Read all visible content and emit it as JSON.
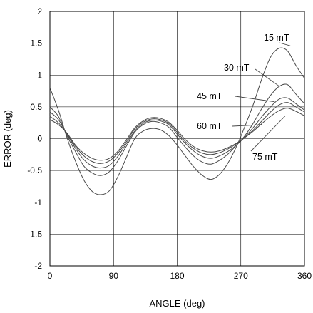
{
  "chart_data": {
    "type": "line",
    "title": "",
    "xlabel": "ANGLE (deg)",
    "ylabel": "ERROR (deg)",
    "xlim": [
      0,
      360
    ],
    "ylim": [
      -2,
      2
    ],
    "grid": true,
    "xticks": [
      0,
      90,
      180,
      270,
      360
    ],
    "xtick_labels": [
      "0",
      "90",
      "180",
      "270",
      "360"
    ],
    "yticks": [
      -2,
      -1.5,
      -1,
      -0.5,
      0,
      0.5,
      1,
      1.5,
      2
    ],
    "ytick_labels": [
      "-2",
      "-1.5",
      "-1",
      "-0.5",
      "0",
      "0.5",
      "1",
      "1.5",
      "2"
    ],
    "series": [
      {
        "name": "15 mT",
        "x": [
          0,
          12,
          24,
          36,
          48,
          60,
          72,
          84,
          96,
          108,
          120,
          132,
          144,
          156,
          168,
          180,
          192,
          204,
          216,
          228,
          240,
          252,
          264,
          276,
          288,
          300,
          312,
          324,
          336,
          348,
          360
        ],
        "y": [
          0.8,
          0.45,
          0.02,
          -0.35,
          -0.65,
          -0.83,
          -0.88,
          -0.82,
          -0.6,
          -0.3,
          0.0,
          0.12,
          0.16,
          0.14,
          0.05,
          -0.1,
          -0.28,
          -0.45,
          -0.58,
          -0.64,
          -0.56,
          -0.38,
          -0.12,
          0.2,
          0.55,
          0.95,
          1.28,
          1.42,
          1.38,
          1.15,
          0.95
        ]
      },
      {
        "name": "30 mT",
        "x": [
          0,
          12,
          24,
          36,
          48,
          60,
          72,
          84,
          96,
          108,
          120,
          132,
          144,
          156,
          168,
          180,
          192,
          204,
          216,
          228,
          240,
          252,
          264,
          276,
          288,
          300,
          312,
          324,
          336,
          348,
          360
        ],
        "y": [
          0.5,
          0.35,
          0.05,
          -0.2,
          -0.43,
          -0.54,
          -0.58,
          -0.52,
          -0.35,
          -0.12,
          0.1,
          0.22,
          0.27,
          0.25,
          0.18,
          0.02,
          -0.14,
          -0.28,
          -0.37,
          -0.4,
          -0.34,
          -0.24,
          -0.1,
          0.05,
          0.25,
          0.48,
          0.68,
          0.82,
          0.85,
          0.7,
          0.55
        ]
      },
      {
        "name": "45 mT",
        "x": [
          0,
          12,
          24,
          36,
          48,
          60,
          72,
          84,
          96,
          108,
          120,
          132,
          144,
          156,
          168,
          180,
          192,
          204,
          216,
          228,
          240,
          252,
          264,
          276,
          288,
          300,
          312,
          324,
          336,
          348,
          360
        ],
        "y": [
          0.42,
          0.3,
          0.07,
          -0.15,
          -0.33,
          -0.43,
          -0.46,
          -0.42,
          -0.28,
          -0.08,
          0.12,
          0.24,
          0.29,
          0.28,
          0.22,
          0.07,
          -0.08,
          -0.2,
          -0.28,
          -0.31,
          -0.27,
          -0.2,
          -0.1,
          0.03,
          0.18,
          0.35,
          0.5,
          0.62,
          0.64,
          0.55,
          0.45
        ]
      },
      {
        "name": "60 mT",
        "x": [
          0,
          12,
          24,
          36,
          48,
          60,
          72,
          84,
          96,
          108,
          120,
          132,
          144,
          156,
          168,
          180,
          192,
          204,
          216,
          228,
          240,
          252,
          264,
          276,
          288,
          300,
          312,
          324,
          336,
          348,
          360
        ],
        "y": [
          0.35,
          0.25,
          0.08,
          -0.12,
          -0.27,
          -0.36,
          -0.39,
          -0.35,
          -0.23,
          -0.05,
          0.15,
          0.26,
          0.31,
          0.3,
          0.24,
          0.1,
          -0.05,
          -0.16,
          -0.23,
          -0.25,
          -0.22,
          -0.16,
          -0.08,
          0.02,
          0.14,
          0.28,
          0.42,
          0.53,
          0.57,
          0.5,
          0.42
        ]
      },
      {
        "name": "75 mT",
        "x": [
          0,
          12,
          24,
          36,
          48,
          60,
          72,
          84,
          96,
          108,
          120,
          132,
          144,
          156,
          168,
          180,
          192,
          204,
          216,
          228,
          240,
          252,
          264,
          276,
          288,
          300,
          312,
          324,
          336,
          348,
          360
        ],
        "y": [
          0.3,
          0.22,
          0.09,
          -0.1,
          -0.23,
          -0.31,
          -0.34,
          -0.31,
          -0.2,
          -0.02,
          0.17,
          0.28,
          0.33,
          0.32,
          0.26,
          0.13,
          -0.02,
          -0.13,
          -0.19,
          -0.21,
          -0.19,
          -0.14,
          -0.07,
          0.02,
          0.12,
          0.24,
          0.35,
          0.44,
          0.48,
          0.43,
          0.36
        ]
      }
    ],
    "annotations": [
      {
        "text": "15 mT",
        "series": "15 mT",
        "anchor": [
          340,
          1.46
        ],
        "label_at": [
          0,
          0
        ]
      },
      {
        "text": "30 mT",
        "series": "30 mT",
        "anchor": [
          325,
          0.82
        ],
        "label_at": [
          0,
          0
        ]
      },
      {
        "text": "45 mT",
        "series": "45 mT",
        "anchor": [
          318,
          0.58
        ],
        "label_at": [
          0,
          0
        ]
      },
      {
        "text": "60 mT",
        "series": "60 mT",
        "anchor": [
          300,
          0.22
        ],
        "label_at": [
          0,
          0
        ]
      },
      {
        "text": "75 mT",
        "series": "75 mT",
        "anchor": [
          333,
          0.36
        ],
        "label_at": [
          0,
          0
        ]
      }
    ]
  }
}
